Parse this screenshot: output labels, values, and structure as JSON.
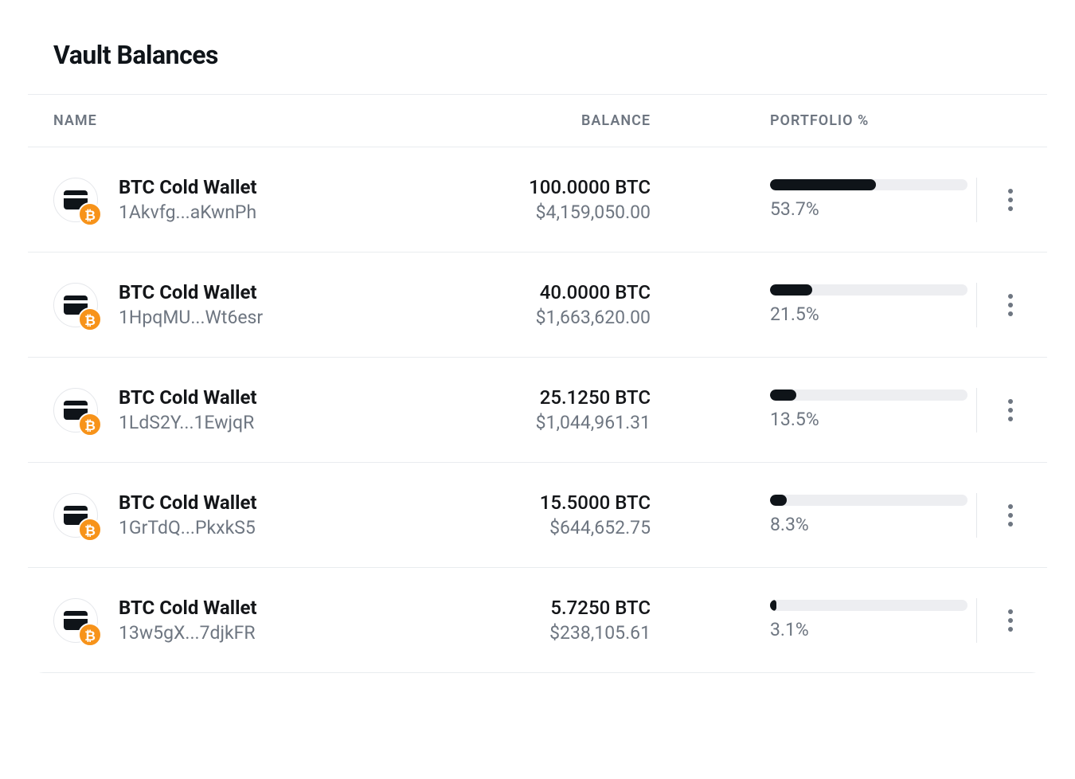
{
  "title": "Vault Balances",
  "columns": {
    "name": "NAME",
    "balance": "BALANCE",
    "portfolio": "PORTFOLIO %"
  },
  "coin_badge_glyph": "₿",
  "colors": {
    "text_primary": "#0f1419",
    "text_secondary": "#6e7681",
    "border": "#e9ecef",
    "bar_track": "#edeef1",
    "bar_fill": "#0f1419",
    "coin_badge": "#f7931a",
    "background": "#ffffff"
  },
  "rows": [
    {
      "name": "BTC Cold Wallet",
      "address": "1Akvfg...aKwnPh",
      "amount": "100.0000 BTC",
      "usd": "$4,159,050.00",
      "pct_label": "53.7%",
      "pct_value": 53.7
    },
    {
      "name": "BTC Cold Wallet",
      "address": "1HpqMU...Wt6esr",
      "amount": "40.0000 BTC",
      "usd": "$1,663,620.00",
      "pct_label": "21.5%",
      "pct_value": 21.5
    },
    {
      "name": "BTC Cold Wallet",
      "address": "1LdS2Y...1EwjqR",
      "amount": "25.1250 BTC",
      "usd": "$1,044,961.31",
      "pct_label": "13.5%",
      "pct_value": 13.5
    },
    {
      "name": "BTC Cold Wallet",
      "address": "1GrTdQ...PkxkS5",
      "amount": "15.5000 BTC",
      "usd": "$644,652.75",
      "pct_label": "8.3%",
      "pct_value": 8.3
    },
    {
      "name": "BTC Cold Wallet",
      "address": "13w5gX...7djkFR",
      "amount": "5.7250 BTC",
      "usd": "$238,105.61",
      "pct_label": "3.1%",
      "pct_value": 3.1
    }
  ]
}
